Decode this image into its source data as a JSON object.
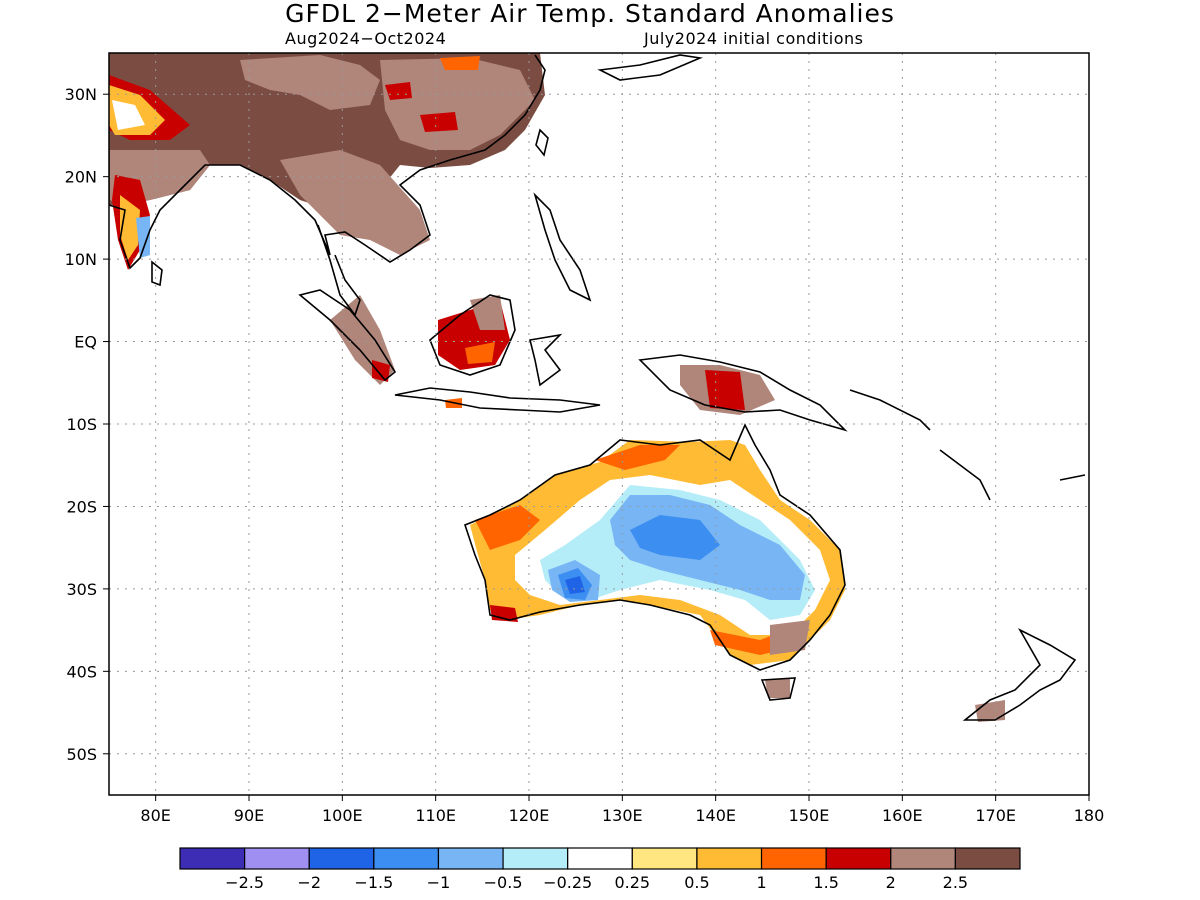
{
  "header": {
    "title": "GFDL 2−Meter Air Temp. Standard Anomalies",
    "period": "Aug2024−Oct2024",
    "init": "July2024 initial conditions"
  },
  "map": {
    "lon_range": [
      75,
      180
    ],
    "lat_range": [
      -55,
      35
    ],
    "lat_ticks": [
      {
        "v": 30,
        "label": "30N"
      },
      {
        "v": 20,
        "label": "20N"
      },
      {
        "v": 10,
        "label": "10N"
      },
      {
        "v": 0,
        "label": "EQ"
      },
      {
        "v": -10,
        "label": "10S"
      },
      {
        "v": -20,
        "label": "20S"
      },
      {
        "v": -30,
        "label": "30S"
      },
      {
        "v": -40,
        "label": "40S"
      },
      {
        "v": -50,
        "label": "50S"
      }
    ],
    "lon_ticks": [
      {
        "v": 80,
        "label": "80E"
      },
      {
        "v": 90,
        "label": "90E"
      },
      {
        "v": 100,
        "label": "100E"
      },
      {
        "v": 110,
        "label": "110E"
      },
      {
        "v": 120,
        "label": "120E"
      },
      {
        "v": 130,
        "label": "130E"
      },
      {
        "v": 140,
        "label": "140E"
      },
      {
        "v": 150,
        "label": "150E"
      },
      {
        "v": 160,
        "label": "160E"
      },
      {
        "v": 170,
        "label": "170E"
      },
      {
        "v": 180,
        "label": "180"
      }
    ],
    "grid": "dotted"
  },
  "colorbar": {
    "colors": [
      "#3d2db5",
      "#9f8ff0",
      "#1f64e6",
      "#3c8ff0",
      "#78b5f5",
      "#b4ecf8",
      "#ffffff",
      "#ffe680",
      "#ffbb33",
      "#ff6400",
      "#c80000",
      "#b0857a",
      "#7b4d42"
    ],
    "labels": [
      "−2.5",
      "−2",
      "−1.5",
      "−1",
      "−0.5",
      "−0.25",
      "0.25",
      "0.5",
      "1",
      "1.5",
      "2",
      "2.5"
    ]
  },
  "anomalies": [
    {
      "name": "south-asia",
      "class": "+2.5 / +2",
      "color": "#7b4d42"
    },
    {
      "name": "australia-interior",
      "class": "−0.5 to −1.5",
      "color": "#78b5f5"
    },
    {
      "name": "australia-coast",
      "class": "+0.5 to +1.5",
      "color": "#ffbb33"
    }
  ]
}
